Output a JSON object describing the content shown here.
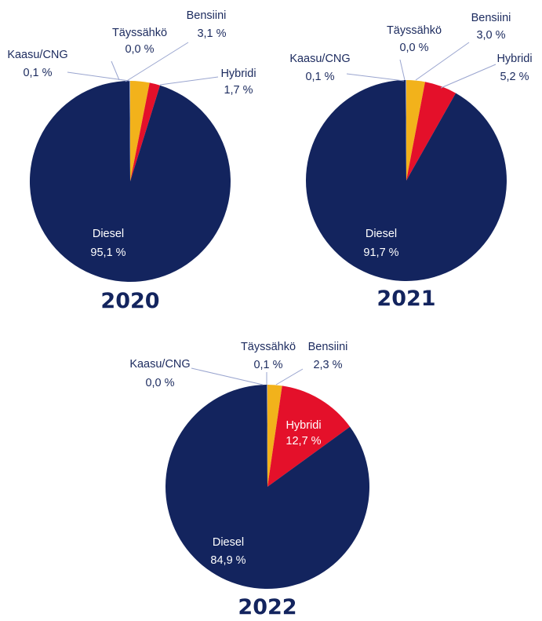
{
  "colors": {
    "Diesel": "#13245e",
    "Bensiini": "#f2b21b",
    "Hybridi": "#e4102a",
    "Täyssähkö": "#8a8fa8",
    "Kaasu/CNG": "#9aa3c4",
    "label_text": "#1b2a5e",
    "label_text_inside": "#ffffff",
    "leader_line": "#9aa5cf"
  },
  "chart_data": [
    {
      "type": "pie",
      "title": "2020",
      "categories": [
        "Bensiini",
        "Hybridi",
        "Diesel",
        "Kaasu/CNG",
        "Täyssähkö"
      ],
      "values": [
        3.1,
        1.7,
        95.1,
        0.1,
        0.0
      ],
      "labels": [
        {
          "name": "Bensiini",
          "value": "3,1 %"
        },
        {
          "name": "Hybridi",
          "value": "1,7 %"
        },
        {
          "name": "Diesel",
          "value": "95,1 %"
        },
        {
          "name": "Kaasu/CNG",
          "value": "0,1 %"
        },
        {
          "name": "Täyssähkö",
          "value": "0,0 %"
        }
      ]
    },
    {
      "type": "pie",
      "title": "2021",
      "categories": [
        "Bensiini",
        "Hybridi",
        "Diesel",
        "Kaasu/CNG",
        "Täyssähkö"
      ],
      "values": [
        3.0,
        5.2,
        91.7,
        0.1,
        0.0
      ],
      "labels": [
        {
          "name": "Bensiini",
          "value": "3,0 %"
        },
        {
          "name": "Hybridi",
          "value": "5,2 %"
        },
        {
          "name": "Diesel",
          "value": "91,7 %"
        },
        {
          "name": "Kaasu/CNG",
          "value": "0,1 %"
        },
        {
          "name": "Täyssähkö",
          "value": "0,0 %"
        }
      ]
    },
    {
      "type": "pie",
      "title": "2022",
      "categories": [
        "Bensiini",
        "Hybridi",
        "Diesel",
        "Kaasu/CNG",
        "Täyssähkö"
      ],
      "values": [
        2.3,
        12.7,
        84.9,
        0.0,
        0.1
      ],
      "labels": [
        {
          "name": "Bensiini",
          "value": "2,3 %"
        },
        {
          "name": "Hybridi",
          "value": "12,7 %"
        },
        {
          "name": "Diesel",
          "value": "84,9 %"
        },
        {
          "name": "Kaasu/CNG",
          "value": "0,0 %"
        },
        {
          "name": "Täyssähkö",
          "value": "0,1 %"
        }
      ]
    }
  ]
}
